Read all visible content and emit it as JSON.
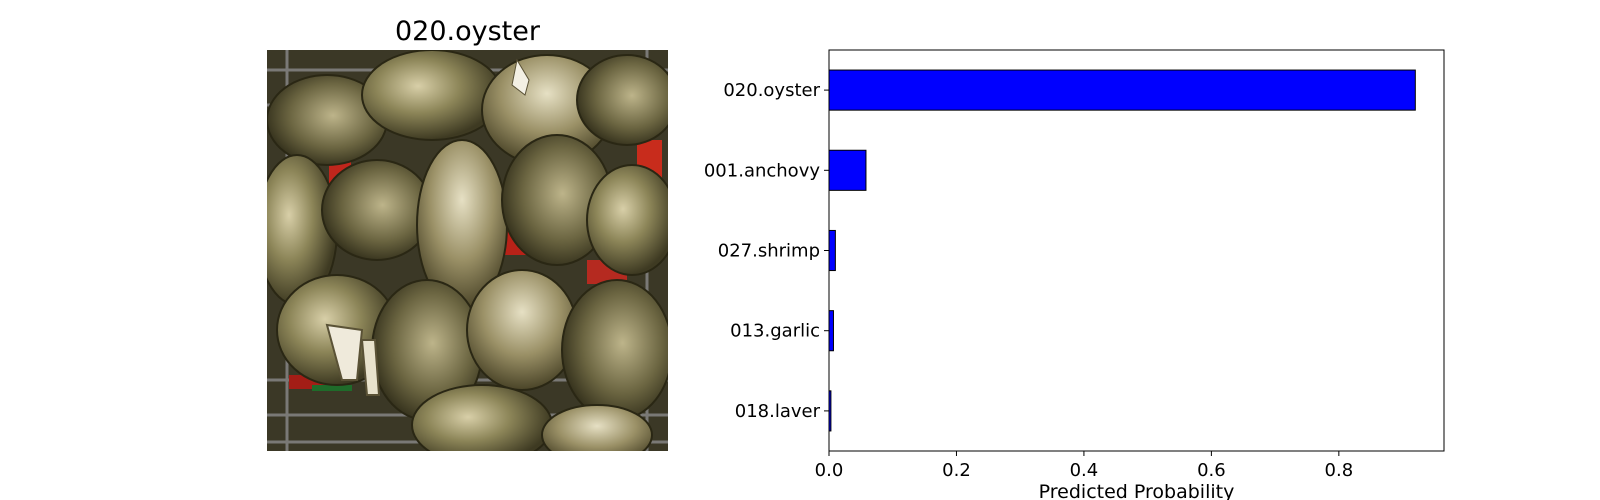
{
  "image_panel": {
    "title": "020.oyster",
    "picture": "photograph of a pile of oysters in a crate"
  },
  "chart_data": {
    "type": "bar",
    "orientation": "horizontal",
    "categories": [
      "020.oyster",
      "001.anchovy",
      "027.shrimp",
      "013.garlic",
      "018.laver"
    ],
    "values": [
      0.92,
      0.058,
      0.01,
      0.007,
      0.003
    ],
    "xlabel": "Predicted Probability",
    "ylabel": "",
    "xlim": [
      0,
      0.965
    ],
    "xticks": [
      "0.0",
      "0.2",
      "0.4",
      "0.6",
      "0.8"
    ],
    "grid": false,
    "legend": "none",
    "bar_color": "#0000ff",
    "edge_color": "#000000"
  }
}
